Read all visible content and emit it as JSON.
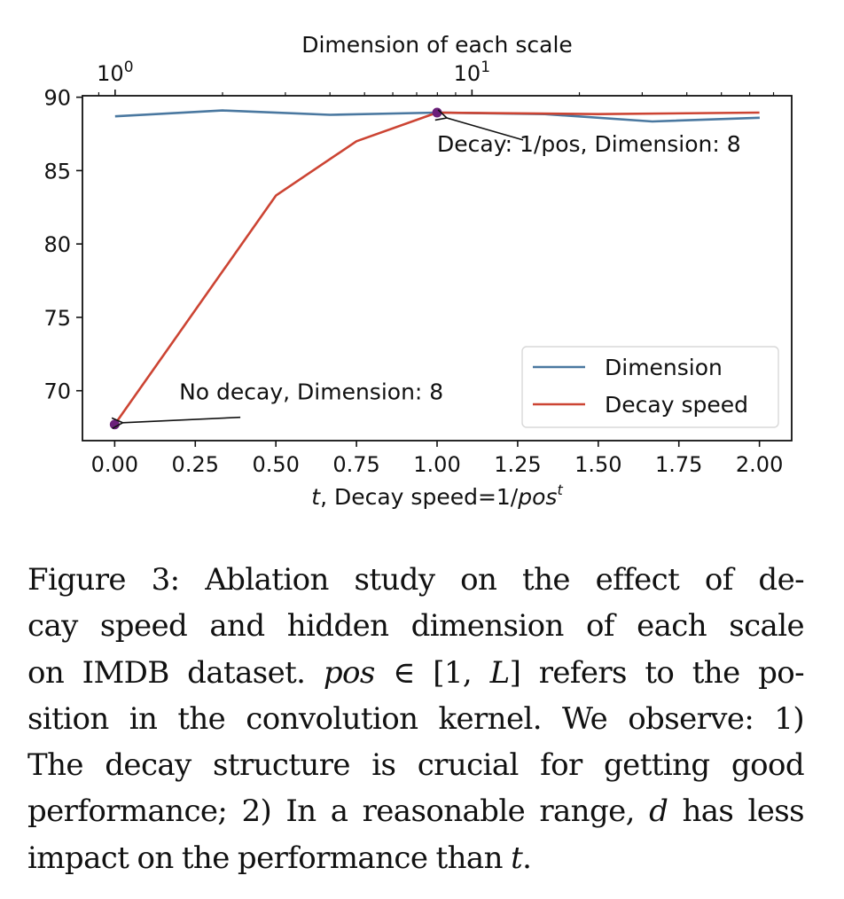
{
  "chart_data": {
    "type": "line",
    "title": "",
    "xlabel": "t, Decay speed=1/pos^t",
    "xlabel_parts": {
      "t": "t",
      "mid": ", Decay speed=1/",
      "pos": "pos",
      "sup": "t"
    },
    "ylabel": "",
    "xlim": [
      -0.1,
      2.1
    ],
    "ylim": [
      66.6,
      90.1
    ],
    "xticks": [
      0.0,
      0.25,
      0.5,
      0.75,
      1.0,
      1.25,
      1.5,
      1.75,
      2.0
    ],
    "xtick_labels": [
      "0.00",
      "0.25",
      "0.50",
      "0.75",
      "1.00",
      "1.25",
      "1.50",
      "1.75",
      "2.00"
    ],
    "yticks": [
      70,
      75,
      80,
      85,
      90
    ],
    "ytick_labels": [
      "70",
      "75",
      "80",
      "85",
      "90"
    ],
    "top_axis": {
      "label": "Dimension of each scale",
      "scale": "log",
      "xlim": [
        0.81,
        78.7
      ],
      "major_ticks": [
        1,
        10
      ],
      "major_tick_labels": [
        {
          "base": "10",
          "exp": "0"
        },
        {
          "base": "10",
          "exp": "1"
        }
      ],
      "minor_ticks": [
        0.9,
        2,
        3,
        4,
        5,
        6,
        7,
        8,
        9,
        20,
        30,
        40,
        50,
        60,
        70
      ]
    },
    "grid": false,
    "legend": {
      "position": "lower-right",
      "entries": [
        "Dimension",
        "Decay speed"
      ]
    },
    "series": [
      {
        "name": "Dimension",
        "axis": "top",
        "color": "#4a78a0",
        "x": [
          1,
          2,
          4,
          8,
          16,
          32,
          64
        ],
        "y": [
          88.7,
          89.1,
          88.8,
          88.95,
          88.85,
          88.35,
          88.6
        ]
      },
      {
        "name": "Decay speed",
        "axis": "bottom",
        "color": "#cc4433",
        "x": [
          0.0,
          0.5,
          0.75,
          1.0,
          1.5,
          2.0
        ],
        "y": [
          67.7,
          83.3,
          87.0,
          88.95,
          88.85,
          88.95
        ]
      }
    ],
    "highlight_points": [
      {
        "x": 0.0,
        "y": 67.7,
        "color": "#6b1f7a"
      },
      {
        "x": 1.0,
        "y": 88.95,
        "color": "#6b1f7a"
      }
    ],
    "annotations": [
      {
        "text": "No decay, Dimension: 8",
        "target": {
          "x": 0.0,
          "y": 67.7
        },
        "text_at": {
          "x": 0.2,
          "y": 69.4
        }
      },
      {
        "text": "Decay: 1/pos, Dimension: 8",
        "target": {
          "x": 1.0,
          "y": 88.95
        },
        "text_at": {
          "x": 1.0,
          "y": 86.3
        }
      }
    ]
  },
  "caption": {
    "lines": [
      [
        "Figure 3:  Ablation study on the effect of de-"
      ],
      [
        "cay speed and hidden dimension of each scale"
      ],
      [
        "on IMDB dataset. ",
        {
          "i": "pos"
        },
        " ∈ [1, ",
        {
          "i": "L"
        },
        "] refers to the po-"
      ],
      [
        "sition in the convolution kernel. We observe: 1)"
      ],
      [
        "The decay structure is crucial for getting good"
      ],
      [
        "performance; 2) In a reasonable range, ",
        {
          "i": "d"
        },
        " has less"
      ],
      [
        "impact on the performance than ",
        {
          "i": "t"
        },
        "."
      ]
    ]
  }
}
